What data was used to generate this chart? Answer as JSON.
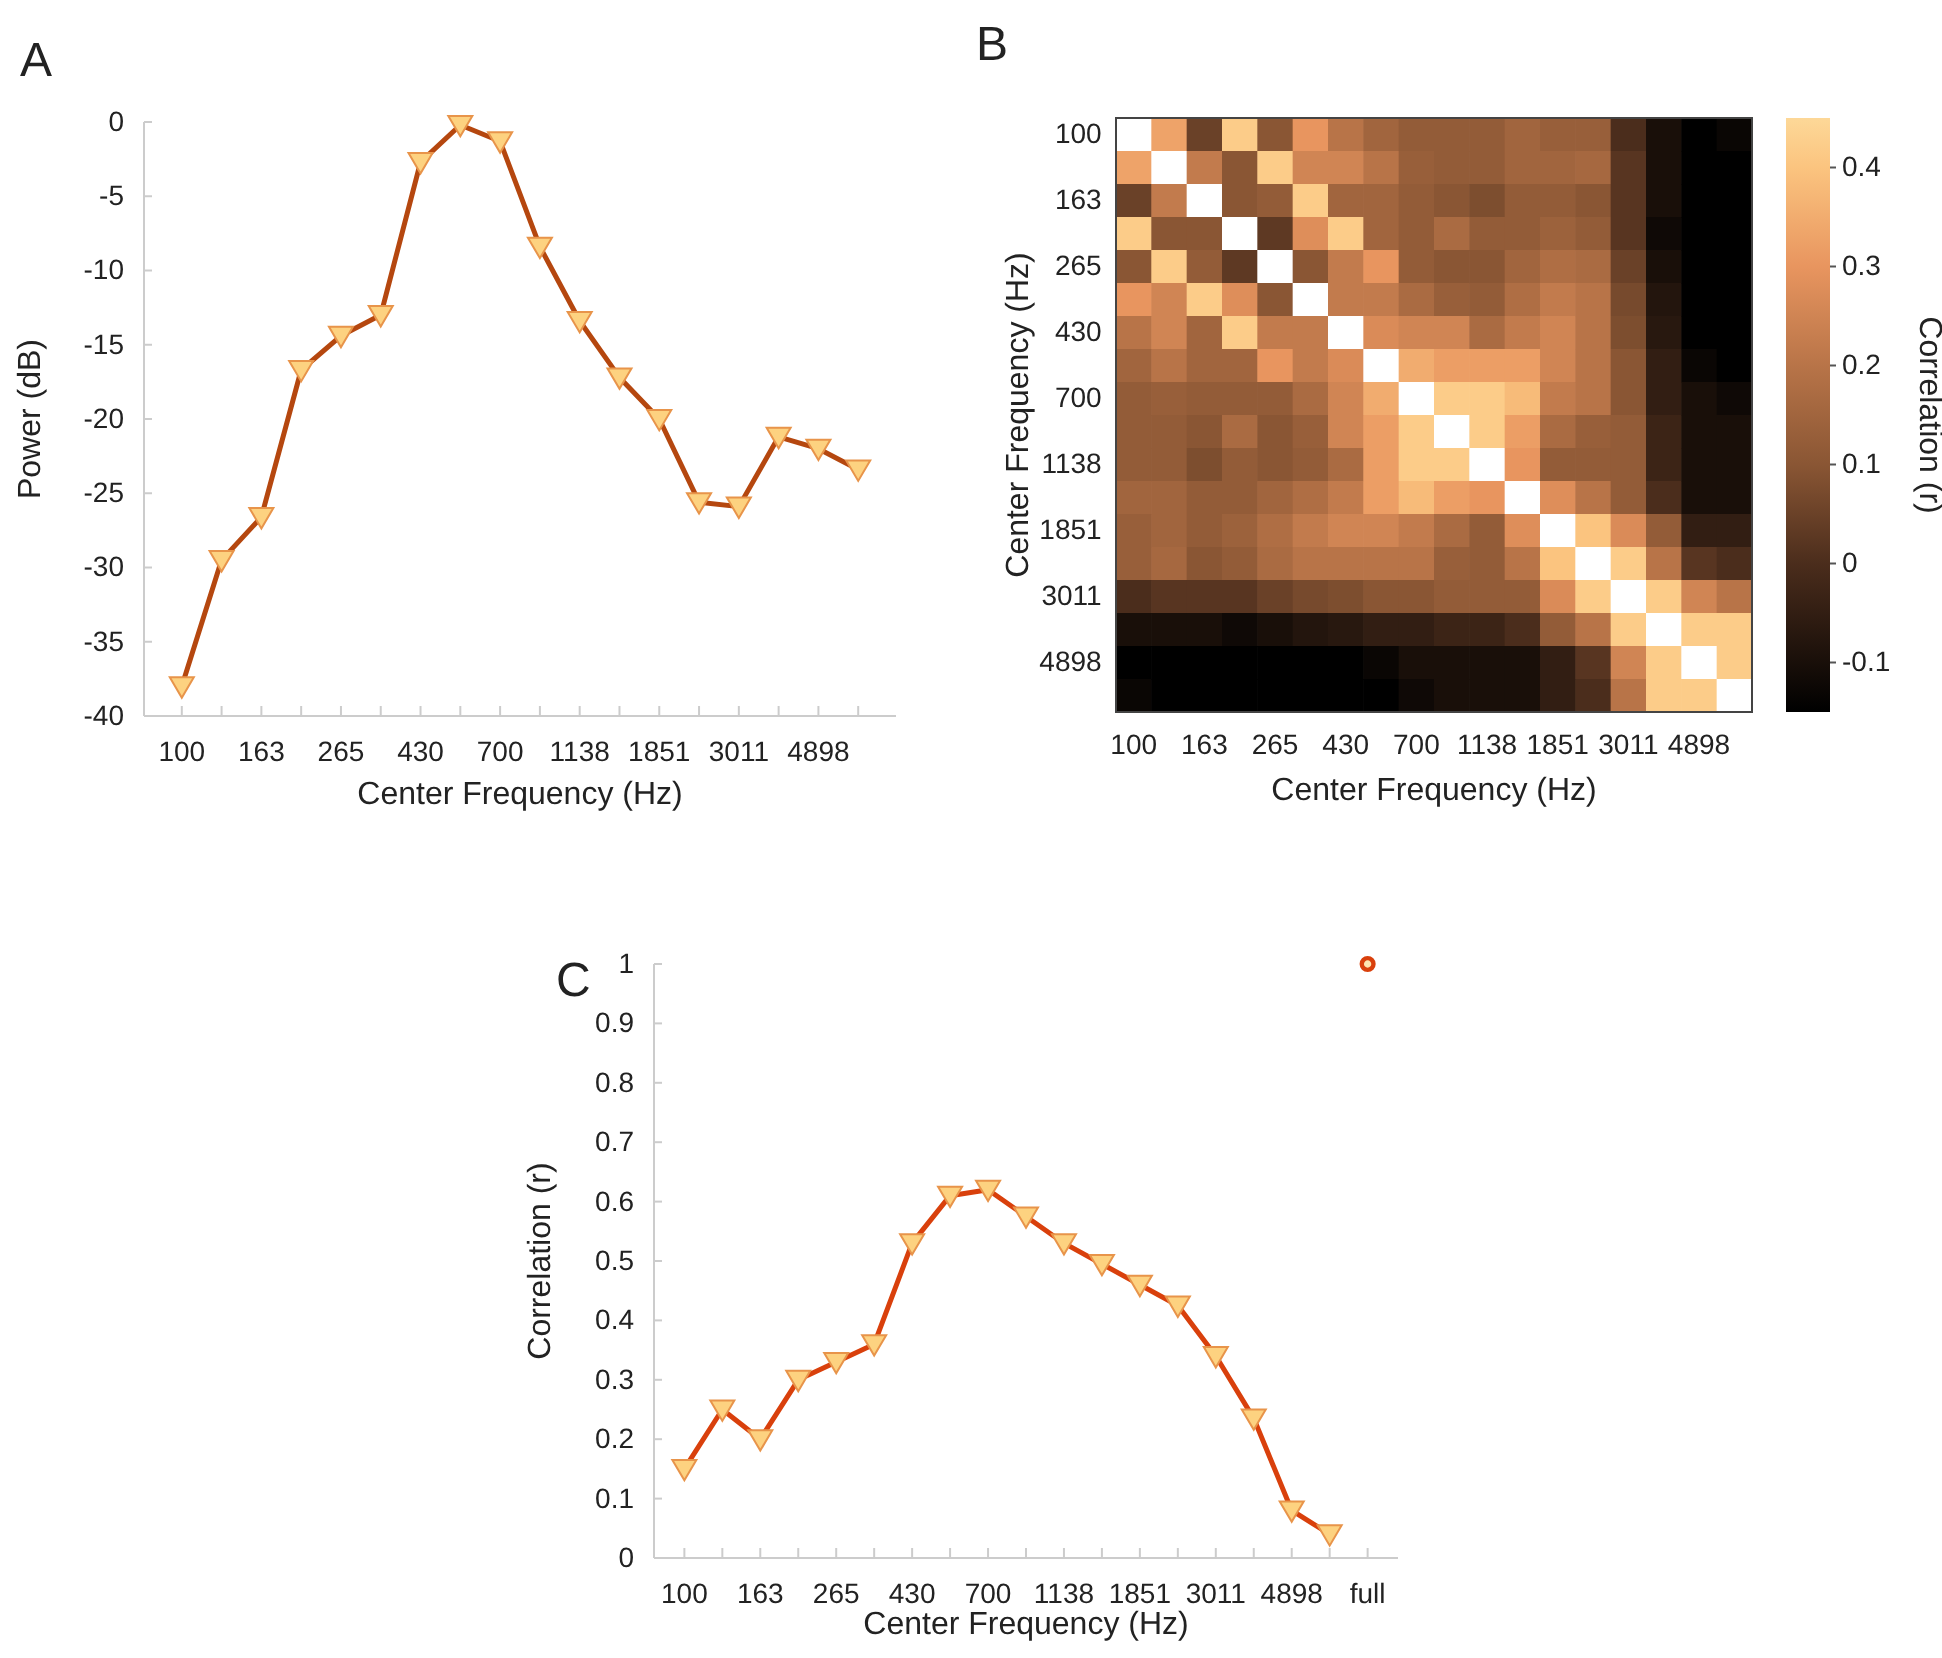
{
  "chart_data": [
    {
      "type": "line",
      "title": "A",
      "xlabel": "Center Frequency (Hz)",
      "ylabel": "Power (dB)",
      "categories": [
        "100",
        null,
        "163",
        null,
        "265",
        null,
        "430",
        null,
        "700",
        null,
        "1138",
        null,
        "1851",
        null,
        "3011",
        null,
        "4898",
        null
      ],
      "ylim": [
        -40,
        0
      ],
      "yticks": [
        -40,
        -35,
        -30,
        -25,
        -20,
        -15,
        -10,
        -5,
        0
      ],
      "marker": "triangle",
      "series": [
        {
          "type": "line",
          "color": "#b5470f",
          "values": [
            -38,
            -29.5,
            -26.6,
            -16.7,
            -14.4,
            -13,
            -2.7,
            -0.2,
            -1.3,
            -8.4,
            -13.4,
            -17.2,
            -20,
            -25.6,
            -25.9,
            -21.2,
            -22,
            -23.4
          ]
        }
      ]
    },
    {
      "type": "heatmap",
      "title": "B",
      "xlabel": "Center Frequency (Hz)",
      "ylabel": "Center Frequency (Hz)",
      "clabel": "Correlation (r)",
      "categories": [
        "100",
        null,
        "163",
        null,
        "265",
        null,
        "430",
        null,
        "700",
        null,
        "1138",
        null,
        "1851",
        null,
        "3011",
        null,
        "4898",
        null
      ],
      "y_categories": [
        "100",
        null,
        "163",
        null,
        "265",
        null,
        "430",
        null,
        "700",
        null,
        "1138",
        null,
        "1851",
        null,
        "3011",
        null,
        "4898",
        null
      ],
      "clim": [
        -0.15,
        0.45
      ],
      "cticks": [
        -0.1,
        0,
        0.1,
        0.2,
        0.3,
        0.4
      ],
      "cells": [
        [
          null,
          0.33,
          0.05,
          0.42,
          0.1,
          0.3,
          0.2,
          0.15,
          0.12,
          0.12,
          0.12,
          0.15,
          0.13,
          0.13,
          0.0,
          -0.1,
          -0.15,
          -0.13
        ],
        [
          0.33,
          null,
          0.22,
          0.1,
          0.42,
          0.25,
          0.25,
          0.2,
          0.13,
          0.12,
          0.12,
          0.15,
          0.15,
          0.16,
          0.02,
          -0.1,
          -0.15,
          -0.15
        ],
        [
          0.05,
          0.22,
          null,
          0.1,
          0.12,
          0.42,
          0.15,
          0.15,
          0.12,
          0.1,
          0.08,
          0.12,
          0.12,
          0.1,
          0.02,
          -0.1,
          -0.15,
          -0.15
        ],
        [
          0.42,
          0.1,
          0.1,
          null,
          0.03,
          0.28,
          0.42,
          0.15,
          0.12,
          0.17,
          0.12,
          0.12,
          0.14,
          0.12,
          0.02,
          -0.12,
          -0.15,
          -0.15
        ],
        [
          0.1,
          0.42,
          0.12,
          0.03,
          null,
          0.1,
          0.22,
          0.3,
          0.12,
          0.1,
          0.1,
          0.15,
          0.18,
          0.17,
          0.05,
          -0.1,
          -0.15,
          -0.15
        ],
        [
          0.3,
          0.25,
          0.42,
          0.28,
          0.1,
          null,
          0.22,
          0.22,
          0.17,
          0.13,
          0.12,
          0.18,
          0.22,
          0.2,
          0.07,
          -0.08,
          -0.15,
          -0.15
        ],
        [
          0.2,
          0.25,
          0.15,
          0.42,
          0.22,
          0.22,
          null,
          0.27,
          0.25,
          0.25,
          0.17,
          0.22,
          0.25,
          0.2,
          0.08,
          -0.07,
          -0.15,
          -0.15
        ],
        [
          0.15,
          0.2,
          0.15,
          0.15,
          0.3,
          0.22,
          0.27,
          null,
          0.35,
          0.32,
          0.32,
          0.32,
          0.25,
          0.2,
          0.1,
          -0.05,
          -0.13,
          -0.15
        ],
        [
          0.12,
          0.13,
          0.12,
          0.12,
          0.12,
          0.17,
          0.25,
          0.35,
          null,
          0.42,
          0.42,
          0.38,
          0.22,
          0.2,
          0.1,
          -0.05,
          -0.1,
          -0.12
        ],
        [
          0.12,
          0.12,
          0.1,
          0.17,
          0.1,
          0.13,
          0.25,
          0.32,
          0.42,
          null,
          0.42,
          0.32,
          0.17,
          0.13,
          0.12,
          -0.03,
          -0.1,
          -0.1
        ],
        [
          0.12,
          0.12,
          0.08,
          0.12,
          0.1,
          0.12,
          0.17,
          0.32,
          0.42,
          0.42,
          null,
          0.3,
          0.12,
          0.12,
          0.12,
          -0.03,
          -0.1,
          -0.1
        ],
        [
          0.15,
          0.15,
          0.12,
          0.12,
          0.15,
          0.18,
          0.22,
          0.32,
          0.38,
          0.32,
          0.3,
          null,
          0.28,
          0.2,
          0.12,
          0.0,
          -0.1,
          -0.1
        ],
        [
          0.13,
          0.15,
          0.12,
          0.14,
          0.18,
          0.22,
          0.25,
          0.25,
          0.22,
          0.17,
          0.12,
          0.28,
          null,
          0.4,
          0.27,
          0.12,
          -0.05,
          -0.05
        ],
        [
          0.13,
          0.16,
          0.1,
          0.12,
          0.17,
          0.2,
          0.2,
          0.2,
          0.2,
          0.13,
          0.12,
          0.2,
          0.4,
          null,
          0.42,
          0.2,
          0.02,
          0.0
        ],
        [
          0.0,
          0.02,
          0.02,
          0.02,
          0.05,
          0.07,
          0.08,
          0.1,
          0.1,
          0.12,
          0.12,
          0.12,
          0.27,
          0.42,
          null,
          0.42,
          0.25,
          0.2
        ],
        [
          -0.1,
          -0.1,
          -0.1,
          -0.12,
          -0.1,
          -0.08,
          -0.07,
          -0.05,
          -0.05,
          -0.03,
          -0.03,
          0.0,
          0.12,
          0.2,
          0.42,
          null,
          0.42,
          0.42
        ],
        [
          -0.15,
          -0.15,
          -0.15,
          -0.15,
          -0.15,
          -0.15,
          -0.15,
          -0.13,
          -0.1,
          -0.1,
          -0.1,
          -0.1,
          -0.05,
          0.02,
          0.25,
          0.42,
          null,
          0.42
        ],
        [
          -0.13,
          -0.15,
          -0.15,
          -0.15,
          -0.15,
          -0.15,
          -0.15,
          -0.15,
          -0.12,
          -0.1,
          -0.1,
          -0.1,
          -0.05,
          0.0,
          0.2,
          0.42,
          0.42,
          null
        ]
      ]
    },
    {
      "type": "line",
      "title": "C",
      "xlabel": "Center Frequency (Hz)",
      "ylabel": "Correlation (r)",
      "categories": [
        "100",
        null,
        "163",
        null,
        "265",
        null,
        "430",
        null,
        "700",
        null,
        "1138",
        null,
        "1851",
        null,
        "3011",
        null,
        "4898",
        null,
        "full"
      ],
      "ylim": [
        0,
        1
      ],
      "yticks": [
        0,
        0.1,
        0.2,
        0.3,
        0.4,
        0.5,
        0.6,
        0.7,
        0.8,
        0.9,
        1
      ],
      "marker": "triangle",
      "series": [
        {
          "type": "line",
          "color": "#d9400c",
          "values": [
            0.15,
            0.25,
            0.2,
            0.3,
            0.33,
            0.36,
            0.53,
            0.61,
            0.62,
            0.575,
            0.53,
            0.495,
            0.46,
            0.425,
            0.34,
            0.235,
            0.08,
            0.04,
            null
          ]
        },
        {
          "type": "scatter",
          "marker": "circle",
          "color": "#d9400c",
          "values": [
            null,
            null,
            null,
            null,
            null,
            null,
            null,
            null,
            null,
            null,
            null,
            null,
            null,
            null,
            null,
            null,
            null,
            null,
            1
          ]
        }
      ]
    }
  ]
}
